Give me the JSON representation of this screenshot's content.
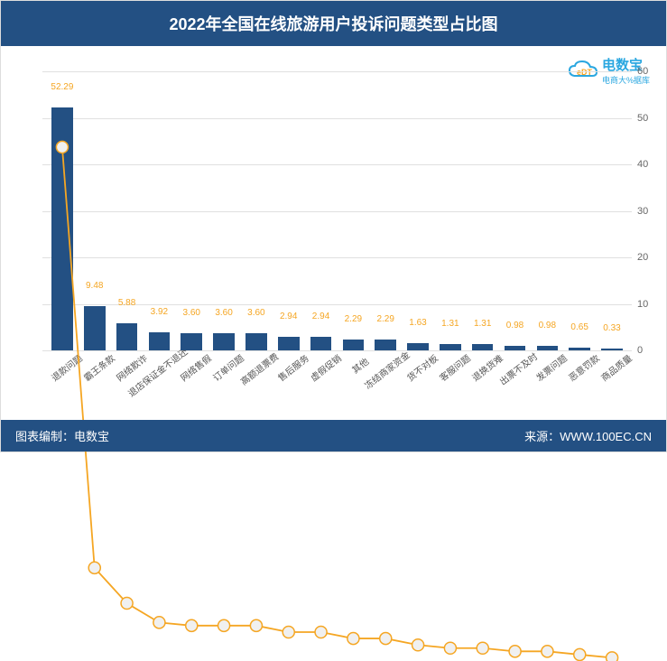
{
  "title": "2022年全国在线旅游用户投诉问题类型占比图",
  "logo": {
    "brand": "电数宝",
    "subtitle": "电商大%据库",
    "edt": "eDT"
  },
  "footer": {
    "left_label": "图表编制：",
    "left_value": "电数宝",
    "right_label": "来源：",
    "right_value": "WWW.100EC.CN"
  },
  "chart": {
    "type": "bar+line",
    "ylim": [
      0,
      60
    ],
    "ytick_step": 10,
    "yticks": [
      0,
      10,
      20,
      30,
      40,
      50,
      60
    ],
    "bar_color": "#235083",
    "line_color": "#f5a623",
    "marker_fill": "#f0f0f0",
    "label_color": "#f5a623",
    "grid_color": "#e0e0e0",
    "background_color": "#ffffff",
    "title_fontsize": 18,
    "label_fontsize": 10,
    "categories": [
      "退款问题",
      "霸王条款",
      "网络欺诈",
      "退店保证金不退还",
      "网络售假",
      "订单问题",
      "高额退票费",
      "售后服务",
      "虚假促销",
      "其他",
      "冻结商家资金",
      "货不对板",
      "客服问题",
      "退换货难",
      "出票不及时",
      "发票问题",
      "恶意罚款",
      "商品质量"
    ],
    "values": [
      52.29,
      9.48,
      5.88,
      3.92,
      3.6,
      3.6,
      3.6,
      2.94,
      2.94,
      2.29,
      2.29,
      1.63,
      1.31,
      1.31,
      0.98,
      0.98,
      0.65,
      0.33
    ]
  }
}
